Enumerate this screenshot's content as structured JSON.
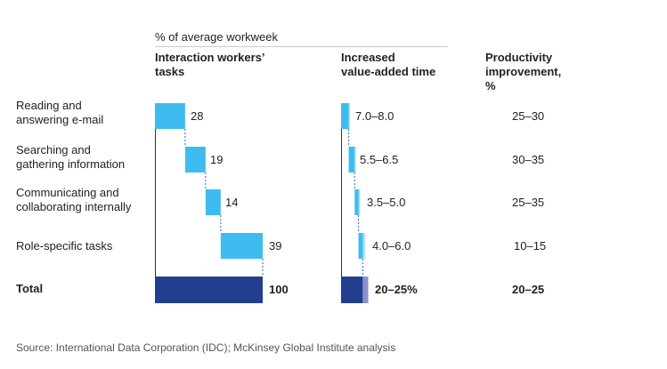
{
  "chart_data": {
    "type": "bar",
    "super_header": "% of average workweek",
    "columns": {
      "tasks": "Interaction workers’\ntasks",
      "value_added": "Increased\nvalue-added time",
      "productivity": "Productivity\nimprovement,\n%"
    },
    "rows": [
      {
        "label": "Reading and\nanswering e-mail",
        "task_share": 28,
        "task_label": "28",
        "value_added": [
          7.0,
          8.0
        ],
        "value_added_label": "7.0–8.0",
        "productivity": "25–30"
      },
      {
        "label": "Searching and\ngathering information",
        "task_share": 19,
        "task_label": "19",
        "value_added": [
          5.5,
          6.5
        ],
        "value_added_label": "5.5–6.5",
        "productivity": "30–35"
      },
      {
        "label": "Communicating and\ncollaborating internally",
        "task_share": 14,
        "task_label": "14",
        "value_added": [
          3.5,
          5.0
        ],
        "value_added_label": "3.5–5.0",
        "productivity": "25–35"
      },
      {
        "label": "Role-specific tasks",
        "task_share": 39,
        "task_label": "39",
        "value_added": [
          4.0,
          6.0
        ],
        "value_added_label": "4.0–6.0",
        "productivity": "10–15"
      }
    ],
    "total": {
      "label": "Total",
      "task_share": 100,
      "task_label": "100",
      "value_added": [
        20,
        25
      ],
      "value_added_label": "20–25%",
      "productivity": "20–25"
    },
    "colors": {
      "bar": "#3fbcef",
      "bar_range": "#9bdcf7",
      "total": "#223f8f",
      "total_range": "#8a8fcc",
      "connector": "#2f6fb0",
      "axis": "#333333",
      "rule": "#cccccc"
    }
  },
  "source": "Source: International Data Corporation (IDC); McKinsey Global Institute analysis"
}
